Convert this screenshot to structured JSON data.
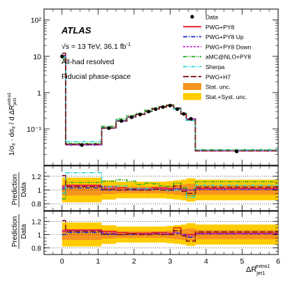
{
  "chart_data": {
    "type": "line",
    "atlas_label": "ATLAS",
    "energy_text": "√s = 13 TeV, 36.1 fb",
    "energy_sup": "-1",
    "channel": "All-had resolved",
    "region": "Fiducial phase-space",
    "ylabel_main": "1/σ",
    "ylabel_ratio_top": "Prediction",
    "ylabel_ratio_bottom": "Data",
    "xlabel": "ΔR",
    "xlabel_sub": "jet1",
    "xlabel_sup": "extra1",
    "xlim": [
      -0.5,
      6
    ],
    "ylim_main": [
      0.01,
      200
    ],
    "ylim_ratio": [
      0.7,
      1.35
    ],
    "yscale_main": "log",
    "main_yticks": [
      "10²",
      "10",
      "1",
      "10⁻¹"
    ],
    "ratio_yticks": [
      "1.2",
      "1",
      "0.8"
    ],
    "xticks": [
      "0",
      "1",
      "2",
      "3",
      "4",
      "5",
      "6"
    ],
    "bin_edges": [
      0,
      0.1,
      1.1,
      1.5,
      1.8,
      2.05,
      2.3,
      2.5,
      2.7,
      2.9,
      3.1,
      3.3,
      3.45,
      3.7,
      6.0
    ],
    "data_points": {
      "x": [
        0.0,
        0.55,
        1.3,
        1.65,
        1.93,
        2.17,
        2.4,
        2.6,
        2.8,
        3.0,
        3.2,
        3.38,
        3.58,
        4.85
      ],
      "y": [
        10,
        0.036,
        0.105,
        0.165,
        0.21,
        0.25,
        0.3,
        0.35,
        0.4,
        0.44,
        0.35,
        0.26,
        0.19,
        0.024
      ]
    },
    "series": [
      {
        "name": "PWG+PY8",
        "color": "#e8141c",
        "dash": "solid",
        "values": [
          10.5,
          0.037,
          0.107,
          0.168,
          0.215,
          0.255,
          0.305,
          0.36,
          0.41,
          0.45,
          0.36,
          0.26,
          0.19,
          0.025
        ]
      },
      {
        "name": "PWG+PY8 Up",
        "color": "#1030d0",
        "dash": "dashdot",
        "values": [
          10.2,
          0.036,
          0.104,
          0.165,
          0.21,
          0.25,
          0.3,
          0.355,
          0.4,
          0.44,
          0.355,
          0.265,
          0.19,
          0.025
        ]
      },
      {
        "name": "PWG+PY8 Down",
        "color": "#c42ad8",
        "dash": "dashed",
        "values": [
          10.3,
          0.037,
          0.106,
          0.166,
          0.212,
          0.252,
          0.303,
          0.357,
          0.405,
          0.445,
          0.357,
          0.258,
          0.19,
          0.025
        ]
      },
      {
        "name": "aMC@NLO+PY8",
        "color": "#22aa22",
        "dash": "dashdotdot",
        "values": [
          8.7,
          0.04,
          0.118,
          0.19,
          0.235,
          0.27,
          0.33,
          0.38,
          0.42,
          0.46,
          0.38,
          0.27,
          0.175,
          0.027
        ]
      },
      {
        "name": "Sherpa",
        "color": "#22d6d6",
        "dash": "dashdot",
        "values": [
          9.5,
          0.045,
          0.11,
          0.175,
          0.215,
          0.255,
          0.305,
          0.355,
          0.4,
          0.435,
          0.35,
          0.255,
          0.17,
          0.026
        ]
      },
      {
        "name": "PWG+H7",
        "color": "#801010",
        "dash": "longdash",
        "values": [
          12.1,
          0.038,
          0.106,
          0.165,
          0.212,
          0.25,
          0.3,
          0.352,
          0.4,
          0.44,
          0.37,
          0.255,
          0.18,
          0.025
        ]
      }
    ],
    "ratio1_series": [
      {
        "name": "PWG+PY8",
        "values": [
          1.05,
          1.07,
          1.05,
          1.03,
          1.02,
          1.02,
          1.02,
          1.03,
          1.03,
          1.02,
          1.02,
          1.0,
          1.0,
          1.02
        ]
      },
      {
        "name": "PWG+PY8 Up",
        "values": [
          1.02,
          1.03,
          1.0,
          1.0,
          1.0,
          1.0,
          1.0,
          1.01,
          1.0,
          1.0,
          1.01,
          1.02,
          1.0,
          1.01
        ]
      },
      {
        "name": "PWG+PY8 Down",
        "values": [
          1.04,
          1.06,
          1.03,
          1.0,
          1.01,
          1.01,
          1.01,
          1.02,
          1.02,
          1.01,
          1.02,
          0.99,
          1.0,
          1.01
        ]
      },
      {
        "name": "aMC@NLO+PY8",
        "values": [
          0.87,
          1.11,
          1.13,
          1.15,
          1.13,
          1.08,
          1.1,
          1.09,
          1.06,
          1.05,
          1.1,
          1.03,
          0.92,
          1.12
        ]
      },
      {
        "name": "Sherpa",
        "values": [
          0.95,
          1.25,
          1.05,
          1.06,
          1.02,
          1.02,
          1.02,
          1.01,
          1.0,
          0.99,
          1.0,
          0.98,
          0.89,
          1.07
        ]
      },
      {
        "name": "PWG+H7",
        "values": [
          1.21,
          1.05,
          1.01,
          1.0,
          1.01,
          1.0,
          1.0,
          1.01,
          1.0,
          1.0,
          1.06,
          0.98,
          0.95,
          1.04
        ]
      }
    ],
    "ratio2_series": [
      {
        "name": "PWG+PY8",
        "values": [
          1.05,
          1.07,
          1.05,
          1.03,
          1.02,
          1.02,
          1.02,
          1.03,
          1.03,
          1.02,
          1.1,
          1.0,
          1.0,
          1.02
        ]
      },
      {
        "name": "PWG+PY8 Up",
        "values": [
          1.0,
          1.03,
          1.0,
          1.0,
          1.0,
          1.0,
          1.0,
          1.01,
          1.0,
          1.0,
          1.02,
          1.0,
          0.96,
          1.01
        ]
      },
      {
        "name": "PWG+PY8 Down",
        "values": [
          1.06,
          1.06,
          1.03,
          1.0,
          1.01,
          1.01,
          1.01,
          1.02,
          1.02,
          1.01,
          1.03,
          1.0,
          0.98,
          1.01
        ]
      },
      {
        "name": "PWG+H7",
        "values": [
          1.21,
          1.05,
          1.01,
          1.0,
          1.01,
          1.0,
          1.0,
          1.01,
          1.0,
          1.0,
          1.06,
          0.98,
          0.9,
          1.04
        ]
      }
    ],
    "stat_unc": [
      0.08,
      0.08,
      0.06,
      0.05,
      0.05,
      0.05,
      0.05,
      0.05,
      0.05,
      0.06,
      0.07,
      0.08,
      0.09,
      0.07
    ],
    "syst_unc": [
      0.18,
      0.18,
      0.14,
      0.12,
      0.12,
      0.12,
      0.12,
      0.12,
      0.12,
      0.13,
      0.14,
      0.15,
      0.17,
      0.15
    ],
    "legend": [
      {
        "label": "Data",
        "kind": "point",
        "color": "#000000"
      },
      {
        "label": "PWG+PY8",
        "kind": "line",
        "color": "#e8141c",
        "dash": "solid"
      },
      {
        "label": "PWG+PY8 Up",
        "kind": "line",
        "color": "#1030d0",
        "dash": "dashdot"
      },
      {
        "label": "PWG+PY8 Down",
        "kind": "line",
        "color": "#c42ad8",
        "dash": "dashed"
      },
      {
        "label": "aMC@NLO+PY8",
        "kind": "line",
        "color": "#22aa22",
        "dash": "dashdotdot"
      },
      {
        "label": "Sherpa",
        "kind": "line",
        "color": "#22d6d6",
        "dash": "dashdot"
      },
      {
        "label": "PWG+H7",
        "kind": "line",
        "color": "#801010",
        "dash": "longdash"
      },
      {
        "label": "Stat. unc.",
        "kind": "box",
        "color": "#f7941d"
      },
      {
        "label": "Stat.+Syst. unc.",
        "kind": "box",
        "color": "#ffcc00"
      }
    ],
    "legend_placement": "top-right",
    "grid": false
  }
}
